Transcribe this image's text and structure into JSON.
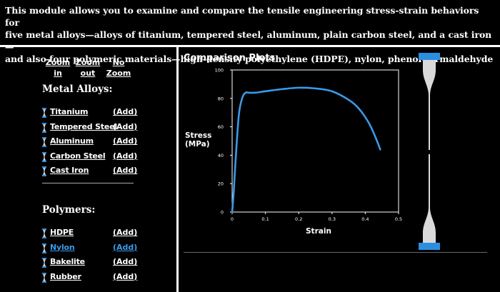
{
  "intro": {
    "line1": "This module allows you to examine and compare the tensile engineering stress-strain behaviors for",
    "line2": "five metal alloys—alloys of titanium, tempered steel, aluminum, plain carbon steel, and a cast iron—",
    "line3": "and also four polymeric materials—high-density polyethylene (HDPE), nylon, phenol-formaldehyde"
  },
  "zoom": {
    "zoom_in": [
      "Zoom",
      "in"
    ],
    "zoom_out": [
      "Zoom",
      "out"
    ],
    "no_zoom": [
      "No",
      "Zoom"
    ]
  },
  "metals": {
    "title": "Metal Alloys:",
    "items": [
      {
        "name": "Titanium",
        "add": "(Add)"
      },
      {
        "name": "Tempered Steel",
        "add": "(Add)"
      },
      {
        "name": "Aluminum",
        "add": "(Add)"
      },
      {
        "name": "Carbon Steel",
        "add": "(Add)"
      },
      {
        "name": "Cast Iron",
        "add": "(Add)"
      }
    ]
  },
  "polymers": {
    "title": "Polymers:",
    "items": [
      {
        "name": "HDPE",
        "add": "(Add)",
        "selected": false
      },
      {
        "name": "Nylon",
        "add": "(Add)",
        "selected": true
      },
      {
        "name": "Bakelite",
        "add": "(Add)",
        "selected": false
      },
      {
        "name": "Rubber",
        "add": "(Add)",
        "selected": false
      }
    ]
  },
  "colors": {
    "accent": "#3a9ae8",
    "curve": "#3a9ae8",
    "specimen": "#d9d9d9",
    "grip": "#2b8fe0"
  },
  "chart_data": {
    "type": "line",
    "title": "Comparison Plots",
    "xlabel": "Strain",
    "ylabel": [
      "Stress",
      "(MPa)"
    ],
    "xlim": [
      0,
      0.5
    ],
    "ylim": [
      0,
      100
    ],
    "xticks": [
      "0",
      "0.1",
      "0.2",
      "0.3",
      "0.4",
      "0.5"
    ],
    "yticks": [
      "0",
      "20",
      "40",
      "60",
      "80",
      "100"
    ],
    "series": [
      {
        "name": "Nylon",
        "x": [
          0,
          0.005,
          0.01,
          0.02,
          0.03,
          0.04,
          0.05,
          0.07,
          0.1,
          0.15,
          0.2,
          0.25,
          0.3,
          0.35,
          0.38,
          0.41,
          0.43,
          0.445
        ],
        "y": [
          0,
          15,
          35,
          68,
          80,
          84,
          84,
          84,
          85,
          86.5,
          87.5,
          87,
          85,
          79,
          73,
          63,
          53,
          44
        ]
      }
    ]
  }
}
